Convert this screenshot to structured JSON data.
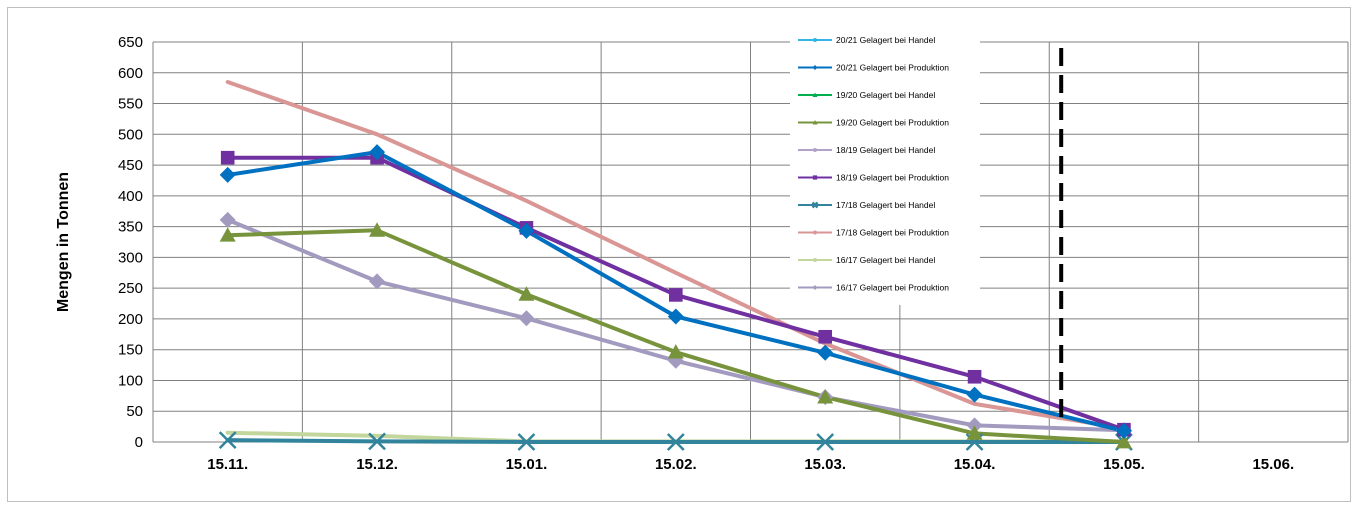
{
  "chart_data": {
    "type": "line",
    "title": "",
    "xlabel": "",
    "ylabel": "Mengen in Tonnen",
    "categories": [
      "15.11.",
      "15.12.",
      "15.01.",
      "15.02.",
      "15.03.",
      "15.04.",
      "15.05.",
      "15.06."
    ],
    "ylim": [
      0,
      650
    ],
    "yticks": [
      0,
      50,
      100,
      150,
      200,
      250,
      300,
      350,
      400,
      450,
      500,
      550,
      600,
      650
    ],
    "grid": true,
    "legend": "top-right",
    "series": [
      {
        "name": "20/21 Gelagert bei Handel",
        "color": "#33b5e5",
        "marker": "circle",
        "values": [
          null,
          null,
          null,
          null,
          null,
          null,
          null,
          null
        ]
      },
      {
        "name": "20/21 Gelagert bei Produktion",
        "color": "#0070c0",
        "marker": "diamond",
        "values": [
          434,
          471,
          343,
          204,
          145,
          77,
          18,
          null
        ]
      },
      {
        "name": "19/20 Gelagert bei Handel",
        "color": "#00b050",
        "marker": "triangle",
        "values": [
          null,
          null,
          null,
          null,
          null,
          null,
          null,
          null
        ]
      },
      {
        "name": "19/20 Gelagert bei Produktion",
        "color": "#77933c",
        "marker": "triangle",
        "values": [
          336,
          344,
          240,
          146,
          73,
          14,
          0,
          null
        ]
      },
      {
        "name": "18/19 Gelagert bei Handel",
        "color": "#b3a2c7",
        "marker": "circle",
        "values": [
          null,
          null,
          null,
          null,
          null,
          null,
          null,
          null
        ]
      },
      {
        "name": "18/19 Gelagert bei Produktion",
        "color": "#7030a0",
        "marker": "square",
        "values": [
          462,
          462,
          348,
          239,
          171,
          106,
          20,
          null
        ]
      },
      {
        "name": "17/18 Gelagert bei Handel",
        "color": "#31849b",
        "marker": "x",
        "values": [
          3,
          1,
          0,
          0,
          0,
          0,
          0,
          null
        ]
      },
      {
        "name": "17/18 Gelagert bei Produktion",
        "color": "#d99694",
        "marker": "none",
        "values": [
          585,
          500,
          392,
          275,
          160,
          62,
          22,
          null
        ]
      },
      {
        "name": "16/17 Gelagert bei Handel",
        "color": "#c3d69b",
        "marker": "none",
        "values": [
          15,
          10,
          1,
          1,
          1,
          1,
          1,
          null
        ]
      },
      {
        "name": "16/17 Gelagert bei Produktion",
        "color": "#a39bbf",
        "marker": "diamond",
        "values": [
          361,
          261,
          201,
          132,
          73,
          27,
          19,
          null
        ]
      }
    ],
    "annotations": [
      {
        "type": "vertical-dashed-line",
        "position": "between 15.04. and 15.05.",
        "color": "#000000"
      }
    ]
  }
}
